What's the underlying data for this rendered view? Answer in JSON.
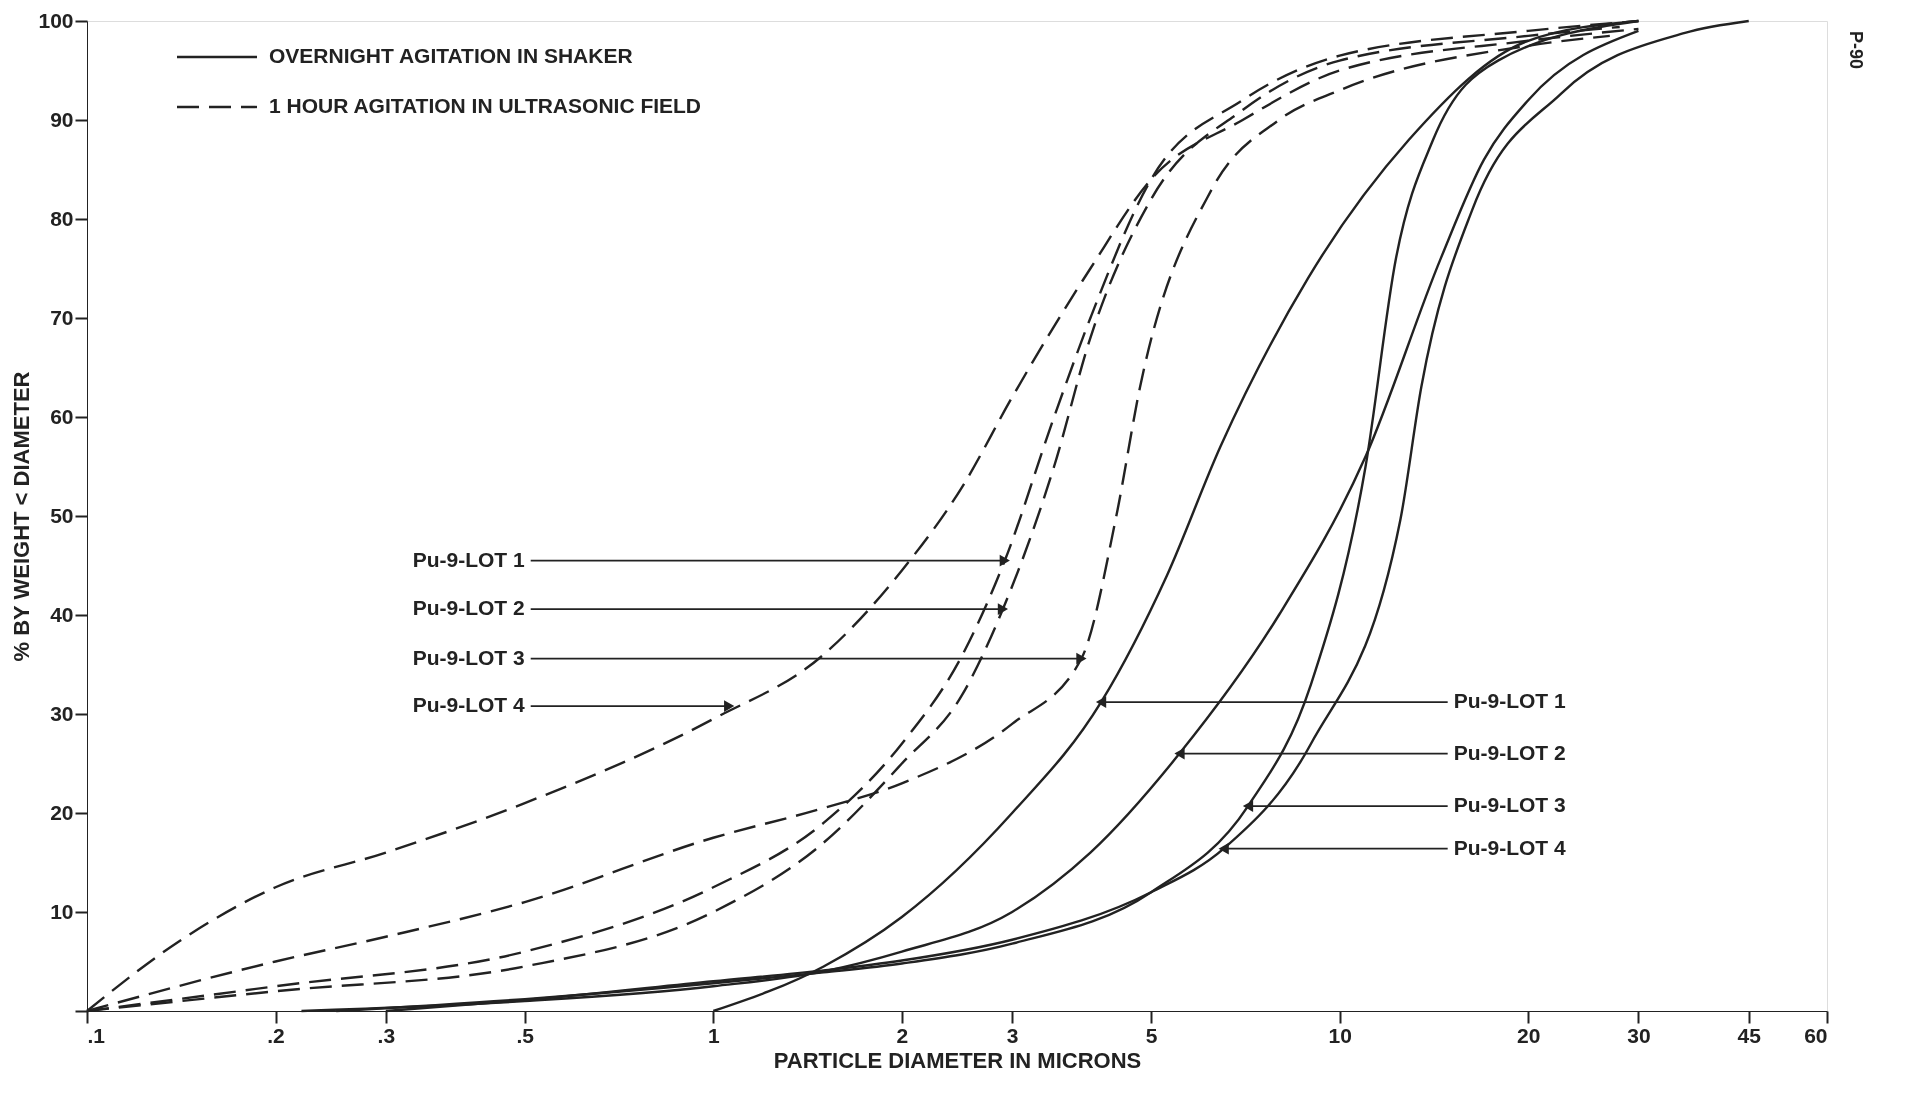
{
  "chart_data": {
    "type": "line",
    "xlabel": "PARTICLE  DIAMETER  IN  MICRONS",
    "ylabel": "% BY WEIGHT < DIAMETER",
    "log": "x",
    "xlim": [
      0.1,
      60
    ],
    "ylim": [
      0,
      100
    ],
    "xticks": [
      {
        "value": 0.1,
        "label": ".1"
      },
      {
        "value": 0.2,
        "label": ".2"
      },
      {
        "value": 0.3,
        "label": ".3"
      },
      {
        "value": 0.5,
        "label": ".5"
      },
      1,
      2,
      3,
      5,
      10,
      20,
      30,
      45,
      60
    ],
    "yticks": [
      {
        "value": 0,
        "label": null
      },
      10,
      20,
      30,
      40,
      50,
      60,
      70,
      80,
      90,
      100
    ],
    "grid": false,
    "marker": "none",
    "series": [
      {
        "color": "#222222",
        "line_style": "solid",
        "x": [
          1,
          1.5,
          2,
          3,
          4.16,
          5.3,
          6.45,
          8.9,
          12.9,
          20,
          30
        ],
        "values": [
          0,
          4.5,
          9.5,
          20,
          31.2,
          44,
          57,
          74,
          88,
          98,
          100
        ]
      },
      {
        "color": "#222222",
        "line_style": "solid",
        "x": [
          0.22,
          0.5,
          1,
          1.5,
          2,
          3,
          4,
          5.55,
          8,
          11,
          14.5,
          17,
          20,
          30
        ],
        "values": [
          0,
          1,
          2.5,
          4,
          6,
          10,
          16,
          26,
          40,
          56,
          76,
          86,
          92,
          99
        ]
      },
      {
        "color": "#222222",
        "line_style": "solid",
        "x": [
          0.25,
          0.5,
          1,
          1.5,
          2,
          3,
          5,
          7.14,
          9,
          11,
          12.3,
          14.1,
          17.9,
          30
        ],
        "values": [
          0,
          1.2,
          2.8,
          3.9,
          4.8,
          6.8,
          12,
          20.7,
          33,
          55,
          76,
          88,
          96,
          100
        ]
      },
      {
        "color": "#222222",
        "line_style": "solid",
        "x": [
          0.3,
          0.5,
          1,
          1.5,
          2,
          3,
          5,
          6.53,
          9,
          12.5,
          13.5,
          16.3,
          22.6,
          35.6,
          45
        ],
        "values": [
          0,
          1.1,
          3,
          4.1,
          5.1,
          7.2,
          12,
          16.4,
          27,
          49.6,
          63,
          81,
          92.7,
          98.8,
          100
        ]
      },
      {
        "color": "#222222",
        "line_style": "dashed",
        "x": [
          0.1,
          0.2,
          0.5,
          1,
          1.5,
          2,
          2.5,
          2.92,
          3.5,
          4,
          5,
          7,
          10,
          20,
          30
        ],
        "values": [
          0,
          2.5,
          6,
          12.5,
          19,
          27,
          36,
          45.5,
          60,
          70,
          84,
          92,
          96.5,
          99,
          100
        ]
      },
      {
        "color": "#222222",
        "line_style": "dashed",
        "x": [
          0.1,
          0.2,
          0.5,
          1,
          1.5,
          2,
          2.5,
          2.9,
          3.5,
          4,
          5,
          7,
          10,
          20,
          28
        ],
        "values": [
          0,
          2,
          4.5,
          10,
          17,
          25,
          32,
          40.6,
          55,
          68,
          82,
          91,
          96,
          98.5,
          99.4
        ]
      },
      {
        "color": "#222222",
        "line_style": "dashed",
        "x": [
          0.1,
          0.2,
          0.3,
          0.5,
          1,
          1.5,
          2,
          3,
          3.87,
          4.4,
          4.8,
          6.25,
          8,
          10,
          20,
          27
        ],
        "values": [
          0,
          5,
          7.5,
          11,
          17.5,
          20.5,
          23,
          29,
          35.6,
          50,
          63,
          83,
          90,
          93,
          97.5,
          98.5
        ]
      },
      {
        "color": "#222222",
        "line_style": "dashed",
        "x": [
          0.1,
          0.14,
          0.2,
          0.3,
          0.5,
          1,
          1.5,
          2,
          2.5,
          3,
          4,
          5,
          7,
          10,
          20,
          30
        ],
        "values": [
          0,
          7,
          12.5,
          16,
          21,
          29.5,
          36,
          44.5,
          53,
          62,
          75,
          84,
          90,
          95,
          98,
          99.2
        ]
      }
    ],
    "annotations": [
      "OVERNIGHT  AGITATION  IN  SHAKER",
      "1 HOUR  AGITATION  IN  ULTRASONIC  FIELD",
      "P-90",
      {
        "text": "Pu-9-LOT 1",
        "x": 2.92,
        "y": 45.5
      },
      {
        "text": "Pu-9-LOT 2",
        "x": 2.9,
        "y": 40.6
      },
      {
        "text": "Pu-9-LOT 3",
        "x": 3.87,
        "y": 35.6
      },
      {
        "text": "Pu-9-LOT 4",
        "x": 1.06,
        "y": 30.8
      },
      {
        "text": "Pu-9-LOT 1",
        "x": 4.16,
        "y": 31.2
      },
      {
        "text": "Pu-9-LOT 2",
        "x": 5.55,
        "y": 26
      },
      {
        "text": "Pu-9-LOT 3",
        "x": 7.14,
        "y": 20.7
      },
      {
        "text": "Pu-9-LOT 4",
        "x": 6.53,
        "y": 16.4
      }
    ]
  }
}
